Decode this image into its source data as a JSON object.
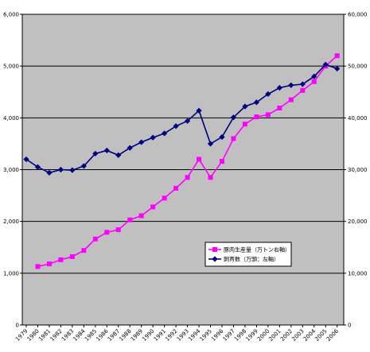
{
  "chart_data": {
    "type": "line",
    "x": [
      1979,
      1980,
      1981,
      1982,
      1983,
      1984,
      1985,
      1986,
      1987,
      1988,
      1989,
      1990,
      1991,
      1992,
      1993,
      1994,
      1995,
      1996,
      1997,
      1998,
      1999,
      2000,
      2001,
      2002,
      2003,
      2004,
      2005,
      2006
    ],
    "x_tick_labels": [
      "1979",
      "1980",
      "1981",
      "1982",
      "1983",
      "1984",
      "1985",
      "1986",
      "1987",
      "1988",
      "1989",
      "1990",
      "1991",
      "1992",
      "1993",
      "1994",
      "1995",
      "1996",
      "1997",
      "1998",
      "1999",
      "2000",
      "2001",
      "2002",
      "2003",
      "2004",
      "2005",
      "2006"
    ],
    "ylim_left": [
      0,
      6000
    ],
    "ylim_right": [
      0,
      60000
    ],
    "y_left_ticks": [
      "0",
      "1,000",
      "2,000",
      "3,000",
      "4,000",
      "5,000",
      "6,000"
    ],
    "y_right_ticks": [
      "0",
      "10,000",
      "20,000",
      "30,000",
      "40,000",
      "50,000",
      "60,000"
    ],
    "grid": true,
    "plot_background": "#c0c0c0",
    "legend_position": "lower-right",
    "series": [
      {
        "name": "豚肉生産量（万トン右軸）",
        "axis": "right",
        "color": "#ff00ff",
        "marker": "square",
        "values": [
          null,
          11300,
          11800,
          12600,
          13200,
          14400,
          16600,
          17900,
          18400,
          20300,
          21100,
          22800,
          24500,
          26400,
          28500,
          32000,
          28500,
          31600,
          36000,
          38800,
          40200,
          40600,
          41900,
          43500,
          45300,
          47000,
          50000,
          52000
        ]
      },
      {
        "name": "飼育数（万頭：左軸）",
        "axis": "left",
        "color": "#000080",
        "marker": "diamond",
        "values": [
          3200,
          3050,
          2940,
          3000,
          2990,
          3070,
          3310,
          3370,
          3280,
          3420,
          3530,
          3620,
          3700,
          3840,
          3940,
          4140,
          3500,
          3630,
          4010,
          4220,
          4300,
          4460,
          4580,
          4630,
          4650,
          4800,
          5030,
          4950
        ]
      }
    ]
  }
}
